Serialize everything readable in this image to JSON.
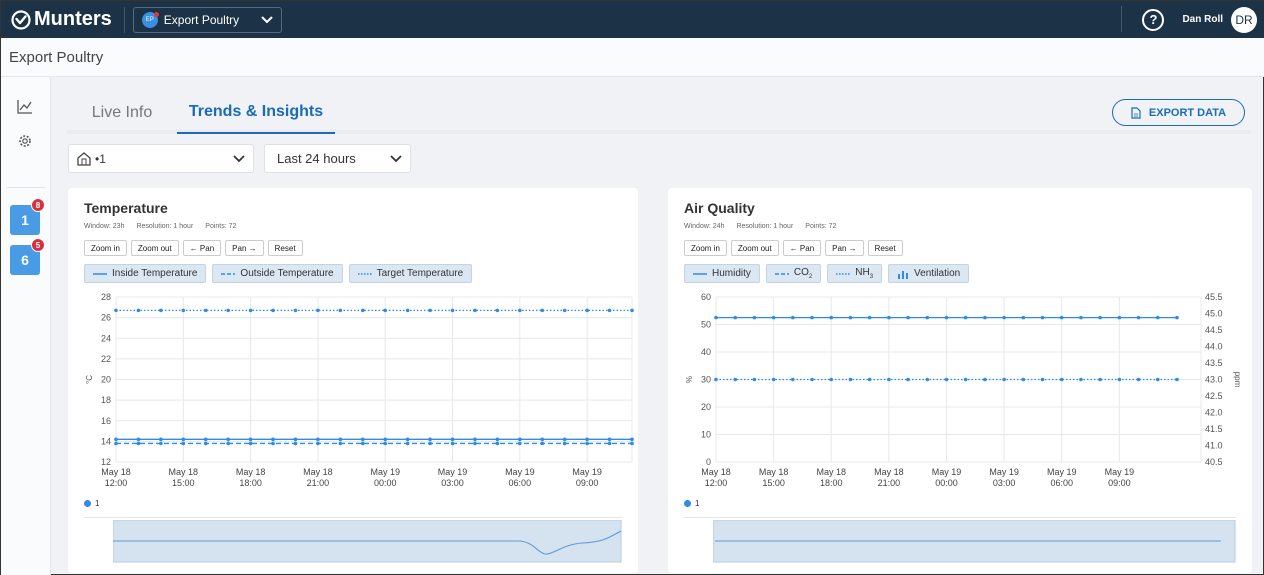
{
  "topbar": {
    "brand": "Munters",
    "farm_badge": "EP",
    "farm_name": "Export Poultry",
    "help": "?",
    "user_name": "Dan Roll",
    "user_initials": "DR"
  },
  "page": {
    "title": "Export Poultry"
  },
  "sidebar": {
    "houses": [
      {
        "number": "1",
        "alerts": "8"
      },
      {
        "number": "6",
        "alerts": "5"
      }
    ]
  },
  "tabs": {
    "live": "Live Info",
    "trends": "Trends & Insights"
  },
  "export_label": "EXPORT DATA",
  "filters": {
    "house_label": "•1",
    "range": "Last 24 hours"
  },
  "controls": {
    "zoom_in": "Zoom in",
    "zoom_out": "Zoom out",
    "pan_left": "← Pan",
    "pan_right": "Pan →",
    "reset": "Reset"
  },
  "temperature": {
    "title": "Temperature",
    "window": "Window: 23h",
    "resolution": "Resolution: 1 hour",
    "points": "Points: 72",
    "legend": [
      "Inside Temperature",
      "Outside Temperature",
      "Target Temperature"
    ],
    "series_label": "1"
  },
  "air_quality": {
    "title": "Air Quality",
    "window": "Window: 24h",
    "resolution": "Resolution: 1 hour",
    "points": "Points: 72",
    "legend_humidity": "Humidity",
    "legend_co2": "CO",
    "legend_co2_sub": "2",
    "legend_nh3": "NH",
    "legend_nh3_sub": "3",
    "legend_ventilation": "Ventilation",
    "series_label": "1"
  },
  "colors": {
    "primary": "#1a6bb8",
    "series": "#2f8be6",
    "topbar": "#1c3347",
    "alert": "#d9303d"
  },
  "chart_data": [
    {
      "type": "line",
      "title": "Temperature",
      "ylabel": "°C",
      "ylim": [
        12,
        28
      ],
      "yticks": [
        "12",
        "14",
        "16",
        "18",
        "20",
        "22",
        "24",
        "26",
        "28"
      ],
      "xticks": [
        [
          "May 18",
          "12:00"
        ],
        [
          "May 18",
          "15:00"
        ],
        [
          "May 18",
          "18:00"
        ],
        [
          "May 18",
          "21:00"
        ],
        [
          "May 19",
          "00:00"
        ],
        [
          "May 19",
          "03:00"
        ],
        [
          "May 19",
          "06:00"
        ],
        [
          "May 19",
          "09:00"
        ]
      ],
      "xlim_hours": [
        0,
        23
      ],
      "series": [
        {
          "name": "Inside Temperature",
          "style": "solid",
          "value": 14.2
        },
        {
          "name": "Outside Temperature",
          "style": "dashed",
          "value": 13.8
        },
        {
          "name": "Target Temperature",
          "style": "dotted",
          "value": 26.7
        }
      ],
      "grid": true
    },
    {
      "type": "line",
      "title": "Air Quality",
      "ylabel": "%",
      "y2label": "ppm",
      "ylim": [
        0,
        60
      ],
      "y2lim": [
        40.5,
        45.5
      ],
      "yticks": [
        "0",
        "10",
        "20",
        "30",
        "40",
        "50",
        "60"
      ],
      "y2ticks": [
        "40.5",
        "41.0",
        "41.5",
        "42.0",
        "42.5",
        "43.0",
        "43.5",
        "44.0",
        "44.5",
        "45.0",
        "45.5"
      ],
      "xticks": [
        [
          "May 18",
          "12:00"
        ],
        [
          "May 18",
          "15:00"
        ],
        [
          "May 18",
          "18:00"
        ],
        [
          "May 18",
          "21:00"
        ],
        [
          "May 19",
          "00:00"
        ],
        [
          "May 19",
          "03:00"
        ],
        [
          "May 19",
          "06:00"
        ],
        [
          "May 19",
          "09:00"
        ]
      ],
      "xlim_hours": [
        0,
        24
      ],
      "series": [
        {
          "name": "Humidity",
          "style": "solid",
          "value": 52.5
        },
        {
          "name": "NH3",
          "style": "dotted",
          "value": 30
        }
      ],
      "grid": true
    }
  ]
}
